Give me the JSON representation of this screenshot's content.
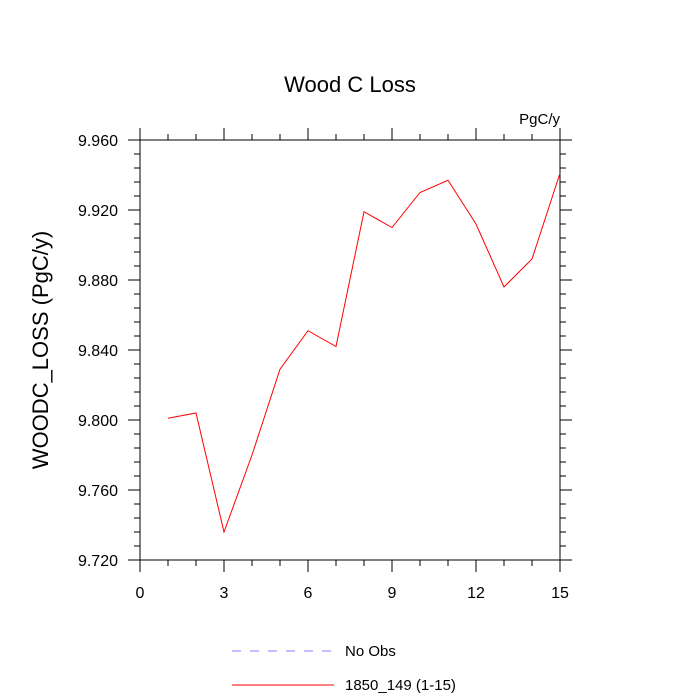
{
  "chart_data": {
    "type": "line",
    "title": "Wood C Loss",
    "units_label": "PgC/y",
    "ylabel": "WOODC_LOSS  (PgC/y)",
    "xlabel": "",
    "xlim": [
      0,
      15
    ],
    "ylim": [
      9.72,
      9.96
    ],
    "xticks": [
      "0",
      "3",
      "6",
      "9",
      "12",
      "15"
    ],
    "yticks": [
      "9.720",
      "9.760",
      "9.800",
      "9.840",
      "9.880",
      "9.920",
      "9.960"
    ],
    "grid": false,
    "legend_position": "bottom",
    "series": [
      {
        "name": "No Obs",
        "color": "#8080ff",
        "dash": "dashed",
        "x": [],
        "y": []
      },
      {
        "name": "1850_149 (1-15)",
        "color": "#ff0000",
        "dash": "solid",
        "x": [
          1,
          2,
          3,
          4,
          5,
          6,
          7,
          8,
          9,
          10,
          11,
          12,
          13,
          14,
          15
        ],
        "y": [
          9.801,
          9.804,
          9.736,
          9.78,
          9.829,
          9.851,
          9.842,
          9.919,
          9.91,
          9.93,
          9.937,
          9.912,
          9.876,
          9.892,
          9.941
        ]
      }
    ]
  }
}
